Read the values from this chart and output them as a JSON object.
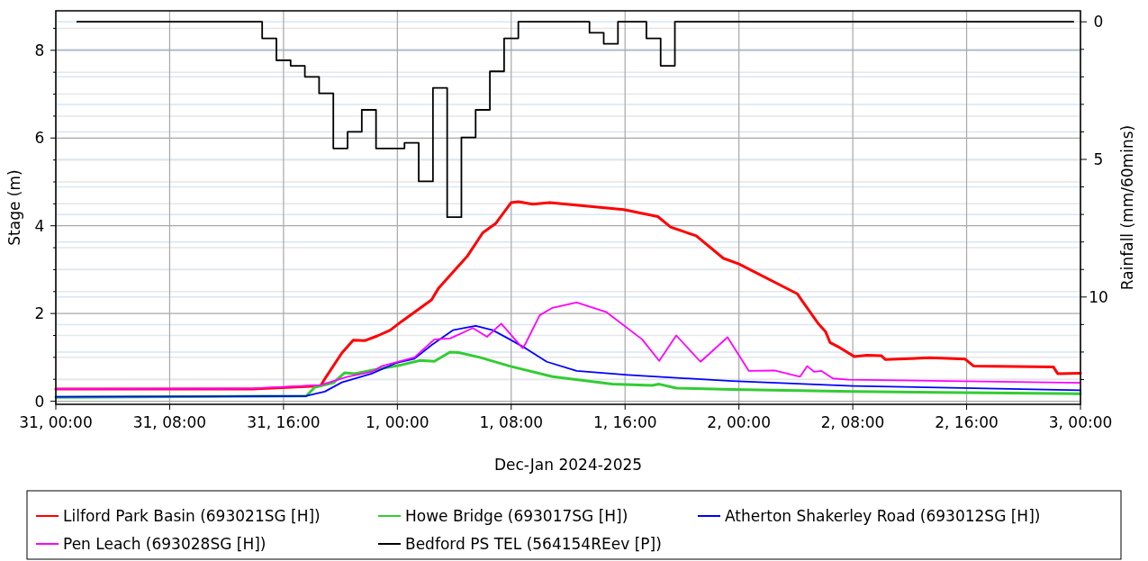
{
  "chart_data": {
    "type": "line",
    "xlabel": "Dec-Jan 2024-2025",
    "ylabel": "Stage (m)",
    "y2label": "Rainfall (mm/60mins)",
    "xlim": [
      "2024-12-31T00:00",
      "2025-01-03T00:00"
    ],
    "xticks": [
      {
        "value": "2024-12-31T00:00",
        "label": "31, 00:00"
      },
      {
        "value": "2024-12-31T08:00",
        "label": "31, 08:00"
      },
      {
        "value": "2024-12-31T16:00",
        "label": "31, 16:00"
      },
      {
        "value": "2025-01-01T00:00",
        "label": "1, 00:00"
      },
      {
        "value": "2025-01-01T08:00",
        "label": "1, 08:00"
      },
      {
        "value": "2025-01-01T16:00",
        "label": "1, 16:00"
      },
      {
        "value": "2025-01-02T00:00",
        "label": "2, 00:00"
      },
      {
        "value": "2025-01-02T08:00",
        "label": "2, 08:00"
      },
      {
        "value": "2025-01-02T16:00",
        "label": "2, 16:00"
      },
      {
        "value": "2025-01-03T00:00",
        "label": "3, 00:00"
      }
    ],
    "ylim": [
      -0.07,
      8.9
    ],
    "yticks": [
      0,
      {
        "value": 0.5,
        "label": null
      },
      {
        "value": 1,
        "label": null
      },
      {
        "value": 1.5,
        "label": null
      },
      2,
      {
        "value": 2.5,
        "label": null
      },
      {
        "value": 3,
        "label": null
      },
      {
        "value": 3.5,
        "label": null
      },
      4,
      {
        "value": 4.5,
        "label": null
      },
      {
        "value": 5,
        "label": null
      },
      {
        "value": 5.5,
        "label": null
      },
      6,
      {
        "value": 6.5,
        "label": null
      },
      {
        "value": 7,
        "label": null
      },
      {
        "value": 7.5,
        "label": null
      },
      8,
      {
        "value": 8.5,
        "label": null
      }
    ],
    "y2lim": [
      13.9,
      -0.4
    ],
    "y2ticks": [
      0,
      {
        "value": 1,
        "label": null
      },
      {
        "value": 2,
        "label": null
      },
      {
        "value": 3,
        "label": null
      },
      {
        "value": 4,
        "label": null
      },
      5,
      {
        "value": 6,
        "label": null
      },
      {
        "value": 7,
        "label": null
      },
      {
        "value": 8,
        "label": null
      },
      {
        "value": 9,
        "label": null
      },
      10,
      {
        "value": 11,
        "label": null
      },
      {
        "value": 12,
        "label": null
      },
      {
        "value": 13,
        "label": null
      }
    ],
    "grid": true,
    "legend": "bottom",
    "line_style": "solid",
    "marker": "none",
    "series": [
      {
        "name": "Lilford Park Basin (693021SG [H])",
        "color": "#ff0000",
        "x": [
          "2024-12-31T00:00",
          "2024-12-31T13:48",
          "2024-12-31T18:36",
          "2024-12-31T19:00",
          "2024-12-31T20:06",
          "2024-12-31T20:54",
          "2024-12-31T21:42",
          "2024-12-31T22:36",
          "2024-12-31T23:30",
          "2025-01-01T00:18",
          "2025-01-01T01:12",
          "2025-01-01T02:24",
          "2025-01-01T02:54",
          "2025-01-01T04:54",
          "2025-01-01T06:00",
          "2025-01-01T06:54",
          "2025-01-01T08:00",
          "2025-01-01T08:30",
          "2025-01-01T09:30",
          "2025-01-01T10:42",
          "2025-01-01T15:54",
          "2025-01-01T18:18",
          "2025-01-01T19:12",
          "2025-01-01T21:00",
          "2025-01-01T22:54",
          "2025-01-02T00:00",
          "2025-01-02T04:06",
          "2025-01-02T04:24",
          "2025-01-02T05:36",
          "2025-01-02T06:06",
          "2025-01-02T06:24",
          "2025-01-02T07:06",
          "2025-01-02T08:06",
          "2025-01-02T09:00",
          "2025-01-02T10:00",
          "2025-01-02T10:18",
          "2025-01-02T13:24",
          "2025-01-02T15:54",
          "2025-01-02T16:30",
          "2025-01-02T22:06",
          "2025-01-02T22:24",
          "2025-01-03T00:00"
        ],
        "values": [
          0.28,
          0.28,
          0.35,
          0.56,
          1.1,
          1.39,
          1.38,
          1.49,
          1.62,
          1.82,
          2.03,
          2.31,
          2.58,
          3.3,
          3.84,
          4.05,
          4.53,
          4.55,
          4.49,
          4.53,
          4.37,
          4.21,
          3.97,
          3.77,
          3.26,
          3.13,
          2.45,
          2.31,
          1.76,
          1.58,
          1.34,
          1.22,
          1.02,
          1.05,
          1.04,
          0.95,
          0.99,
          0.96,
          0.8,
          0.78,
          0.63,
          0.64
        ]
      },
      {
        "name": "Howe Bridge (693017SG [H])",
        "color": "#33cc33",
        "x": [
          "2024-12-31T00:00",
          "2024-12-31T17:36",
          "2024-12-31T18:12",
          "2024-12-31T19:30",
          "2024-12-31T20:18",
          "2024-12-31T21:00",
          "2024-12-31T22:36",
          "2025-01-01T00:18",
          "2025-01-01T01:36",
          "2025-01-01T02:36",
          "2025-01-01T03:42",
          "2025-01-01T04:18",
          "2025-01-01T05:48",
          "2025-01-01T07:54",
          "2025-01-01T10:54",
          "2025-01-01T15:06",
          "2025-01-01T17:54",
          "2025-01-01T18:24",
          "2025-01-01T19:36",
          "2025-01-01T23:30",
          "2025-01-02T08:00",
          "2025-01-03T00:00"
        ],
        "values": [
          0.09,
          0.12,
          0.32,
          0.42,
          0.65,
          0.63,
          0.73,
          0.83,
          0.93,
          0.91,
          1.12,
          1.11,
          1.0,
          0.8,
          0.56,
          0.39,
          0.36,
          0.39,
          0.3,
          0.27,
          0.22,
          0.17
        ]
      },
      {
        "name": "Atherton Shakerley Road (693012SG [H])",
        "color": "#0000ff",
        "x": [
          "2024-12-31T00:00",
          "2024-12-31T17:36",
          "2024-12-31T18:54",
          "2024-12-31T20:06",
          "2024-12-31T22:12",
          "2024-12-31T23:54",
          "2025-01-01T01:12",
          "2025-01-01T02:24",
          "2025-01-01T03:54",
          "2025-01-01T05:30",
          "2025-01-01T06:42",
          "2025-01-01T07:54",
          "2025-01-01T09:00",
          "2025-01-01T10:30",
          "2025-01-01T12:36",
          "2025-01-01T16:12",
          "2025-01-01T23:30",
          "2025-01-02T08:00",
          "2025-01-03T00:00"
        ],
        "values": [
          0.1,
          0.12,
          0.22,
          0.43,
          0.63,
          0.87,
          0.97,
          1.28,
          1.62,
          1.72,
          1.62,
          1.41,
          1.21,
          0.9,
          0.69,
          0.6,
          0.46,
          0.35,
          0.25
        ]
      },
      {
        "name": "Pen Leach (693028SG [H])",
        "color": "#ff00ff",
        "x": [
          "2024-12-31T00:00",
          "2024-12-31T13:48",
          "2024-12-31T18:36",
          "2024-12-31T20:30",
          "2024-12-31T22:12",
          "2024-12-31T22:54",
          "2025-01-01T01:12",
          "2025-01-01T02:36",
          "2025-01-01T03:42",
          "2025-01-01T05:18",
          "2025-01-01T06:18",
          "2025-01-01T07:18",
          "2025-01-01T08:48",
          "2025-01-01T09:00",
          "2025-01-01T10:00",
          "2025-01-01T10:54",
          "2025-01-01T12:36",
          "2025-01-01T14:42",
          "2025-01-01T17:12",
          "2025-01-01T18:24",
          "2025-01-01T19:36",
          "2025-01-01T21:18",
          "2025-01-01T23:12",
          "2025-01-02T00:42",
          "2025-01-02T02:30",
          "2025-01-02T04:18",
          "2025-01-02T04:48",
          "2025-01-02T05:18",
          "2025-01-02T05:48",
          "2025-01-02T06:36",
          "2025-01-02T07:42",
          "2025-01-03T00:00"
        ],
        "values": [
          0.28,
          0.29,
          0.37,
          0.56,
          0.67,
          0.8,
          1.0,
          1.41,
          1.43,
          1.67,
          1.47,
          1.77,
          1.21,
          1.31,
          1.96,
          2.13,
          2.25,
          2.03,
          1.41,
          0.92,
          1.5,
          0.9,
          1.46,
          0.69,
          0.7,
          0.56,
          0.8,
          0.67,
          0.69,
          0.52,
          0.49,
          0.42
        ]
      },
      {
        "name": "Bedford PS TEL (564154REev [P])",
        "color": "#000000",
        "type": "step",
        "axis": "y2",
        "x": [
          "2024-12-31T01:30",
          "2024-12-31T14:30",
          "2024-12-31T15:30",
          "2024-12-31T16:30",
          "2024-12-31T17:30",
          "2024-12-31T18:30",
          "2024-12-31T19:30",
          "2024-12-31T20:30",
          "2024-12-31T21:30",
          "2024-12-31T22:30",
          "2025-01-01T00:30",
          "2025-01-01T01:30",
          "2025-01-01T02:30",
          "2025-01-01T03:30",
          "2025-01-01T04:30",
          "2025-01-01T05:30",
          "2025-01-01T06:30",
          "2025-01-01T07:30",
          "2025-01-01T08:30",
          "2025-01-01T13:30",
          "2025-01-01T14:30",
          "2025-01-01T15:30",
          "2025-01-01T17:30",
          "2025-01-01T18:30",
          "2025-01-01T19:30",
          "2025-01-02T23:30"
        ],
        "values": [
          0,
          0.6,
          1.4,
          1.6,
          2.0,
          2.6,
          4.6,
          4.0,
          3.2,
          4.6,
          4.4,
          5.8,
          2.4,
          7.1,
          4.2,
          3.2,
          1.8,
          0.6,
          0,
          0.4,
          0.8,
          0,
          0.6,
          1.6,
          0,
          0
        ]
      }
    ]
  }
}
